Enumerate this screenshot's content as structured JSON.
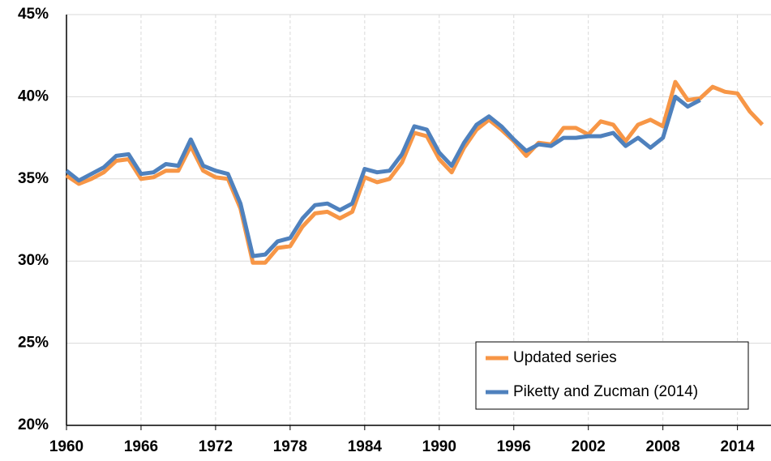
{
  "chart_data": {
    "type": "line",
    "x": [
      1960,
      1961,
      1962,
      1963,
      1964,
      1965,
      1966,
      1967,
      1968,
      1969,
      1970,
      1971,
      1972,
      1973,
      1974,
      1975,
      1976,
      1977,
      1978,
      1979,
      1980,
      1981,
      1982,
      1983,
      1984,
      1985,
      1986,
      1987,
      1988,
      1989,
      1990,
      1991,
      1992,
      1993,
      1994,
      1995,
      1996,
      1997,
      1998,
      1999,
      2000,
      2001,
      2002,
      2003,
      2004,
      2005,
      2006,
      2007,
      2008,
      2009,
      2010,
      2011,
      2012,
      2013,
      2014,
      2015,
      2016
    ],
    "series": [
      {
        "name": "Updated series",
        "color": "#f79646",
        "values": [
          35.2,
          34.7,
          35.0,
          35.4,
          36.1,
          36.2,
          35.0,
          35.1,
          35.5,
          35.5,
          37.0,
          35.5,
          35.1,
          35.0,
          33.2,
          29.9,
          29.9,
          30.8,
          30.9,
          32.1,
          32.9,
          33.0,
          32.6,
          33.0,
          35.1,
          34.8,
          35.0,
          36.0,
          37.8,
          37.6,
          36.2,
          35.4,
          36.9,
          38.0,
          38.6,
          38.0,
          37.3,
          36.4,
          37.2,
          37.1,
          38.1,
          38.1,
          37.7,
          38.5,
          38.3,
          37.3,
          38.3,
          38.6,
          38.2,
          40.9,
          39.8,
          39.9,
          40.6,
          40.3,
          40.2,
          39.1,
          38.3
        ]
      },
      {
        "name": "Piketty and Zucman (2014)",
        "color": "#4f81bd",
        "values": [
          35.5,
          34.9,
          35.3,
          35.7,
          36.4,
          36.5,
          35.3,
          35.4,
          35.9,
          35.8,
          37.4,
          35.8,
          35.5,
          35.3,
          33.5,
          30.3,
          30.4,
          31.2,
          31.4,
          32.6,
          33.4,
          33.5,
          33.1,
          33.5,
          35.6,
          35.4,
          35.5,
          36.5,
          38.2,
          38.0,
          36.6,
          35.8,
          37.2,
          38.3,
          38.8,
          38.2,
          37.4,
          36.7,
          37.1,
          37.0,
          37.5,
          37.5,
          37.6,
          37.6,
          37.8,
          37.0,
          37.5,
          36.9,
          37.5,
          40.0,
          39.4,
          39.8,
          null,
          null,
          null,
          null,
          null
        ]
      }
    ],
    "xlim": [
      1960,
      2016.7
    ],
    "xticks": [
      1960,
      1966,
      1972,
      1978,
      1984,
      1990,
      1996,
      2002,
      2008,
      2014
    ],
    "ylim": [
      20,
      45
    ],
    "yticks": [
      {
        "value": 20,
        "label": "20%"
      },
      {
        "value": 25,
        "label": "25%"
      },
      {
        "value": 30,
        "label": "30%"
      },
      {
        "value": 35,
        "label": "35%"
      },
      {
        "value": 40,
        "label": "40%"
      },
      {
        "value": 45,
        "label": "45%"
      }
    ],
    "grid": true,
    "legend": "lower right"
  }
}
